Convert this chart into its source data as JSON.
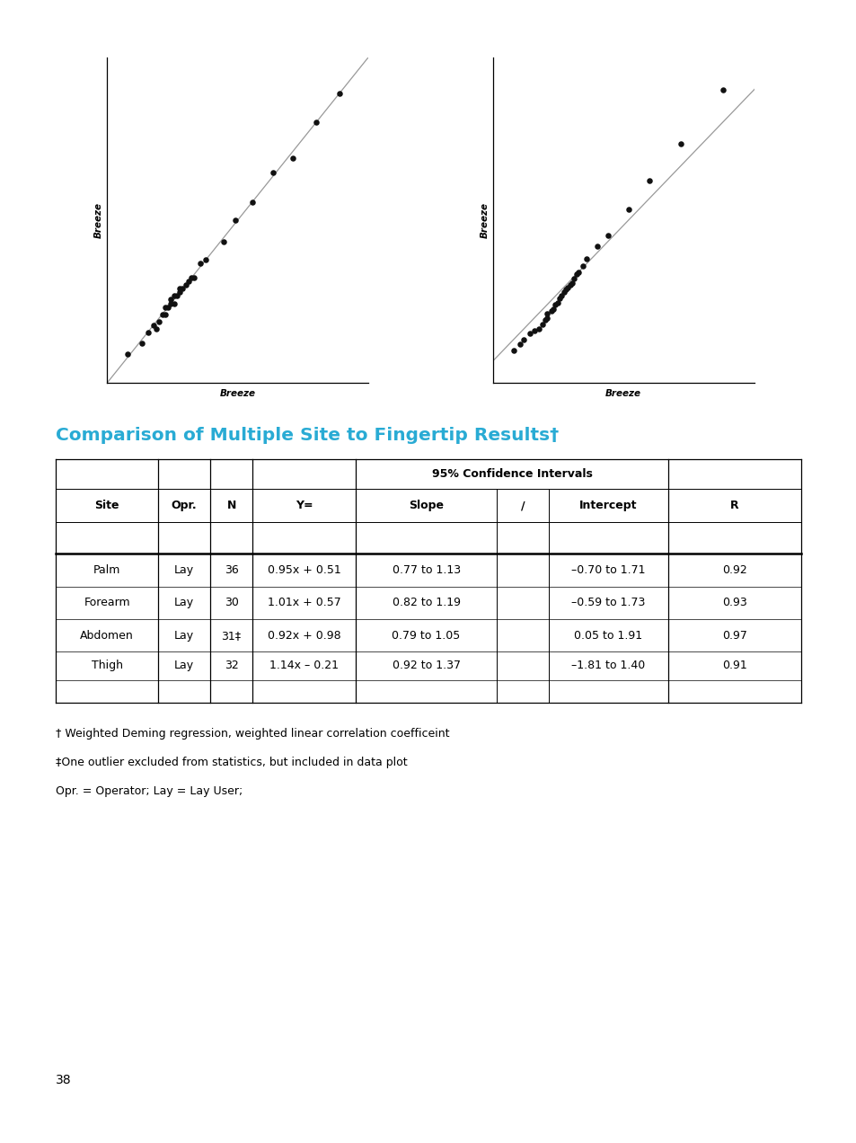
{
  "title": "Comparison of Multiple Site to Fingertip Results†",
  "title_color": "#29ABD4",
  "page_number": "38",
  "scatter1": {
    "x": [
      75,
      80,
      82,
      84,
      85,
      86,
      87,
      88,
      88,
      89,
      90,
      90,
      91,
      91,
      92,
      93,
      93,
      94,
      95,
      96,
      97,
      98,
      100,
      102,
      108,
      112,
      118,
      125,
      132,
      140,
      148
    ],
    "y": [
      76,
      79,
      82,
      84,
      83,
      85,
      87,
      87,
      89,
      89,
      90,
      91,
      90,
      92,
      92,
      93,
      94,
      94,
      95,
      96,
      97,
      97,
      101,
      102,
      107,
      113,
      118,
      126,
      130,
      140,
      148
    ]
  },
  "scatter2": {
    "x": [
      60,
      63,
      65,
      68,
      70,
      72,
      74,
      75,
      76,
      76,
      78,
      79,
      80,
      81,
      82,
      83,
      84,
      85,
      86,
      87,
      88,
      89,
      90,
      91,
      93,
      95,
      100,
      105,
      115,
      125,
      140,
      160
    ],
    "y": [
      55,
      58,
      60,
      63,
      64,
      65,
      67,
      69,
      70,
      72,
      73,
      74,
      76,
      77,
      79,
      80,
      82,
      83,
      84,
      85,
      86,
      88,
      90,
      91,
      94,
      97,
      103,
      108,
      120,
      133,
      150,
      175
    ]
  },
  "xlabel": "Breeze",
  "ylabel": "Breeze",
  "table_rows": [
    [
      "Palm",
      "Lay",
      "36",
      "0.95x + 0.51",
      "0.77 ​to​ 1.13",
      "–0.70 ​to​ 1.71",
      "0.92"
    ],
    [
      "Forearm",
      "Lay",
      "30",
      "1.01x + 0.57",
      "0.82 ​to​ 1.19",
      "–0.59 ​to​ 1.73",
      "0.93"
    ],
    [
      "Abdomen",
      "Lay",
      "31‡",
      "0.92x + 0.98",
      "0.79 ​to​ 1.05",
      "0.05 ​to​ 1.91",
      "0.97"
    ],
    [
      "Thigh",
      "Lay",
      "32",
      "1.14x – 0.21",
      "0.92 ​to​ 1.37",
      "–1.81 ​to​ 1.40",
      "0.91"
    ]
  ],
  "footnotes": [
    "† Weighted Deming regression, weighted linear correlation coefficeint",
    "‡One outlier excluded from statistics, but included in data plot",
    "Opr. = Operator; Lay = Lay User;"
  ],
  "bg_color": "#ffffff",
  "text_color": "#000000",
  "scatter_color": "#111111",
  "line_color": "#999999"
}
